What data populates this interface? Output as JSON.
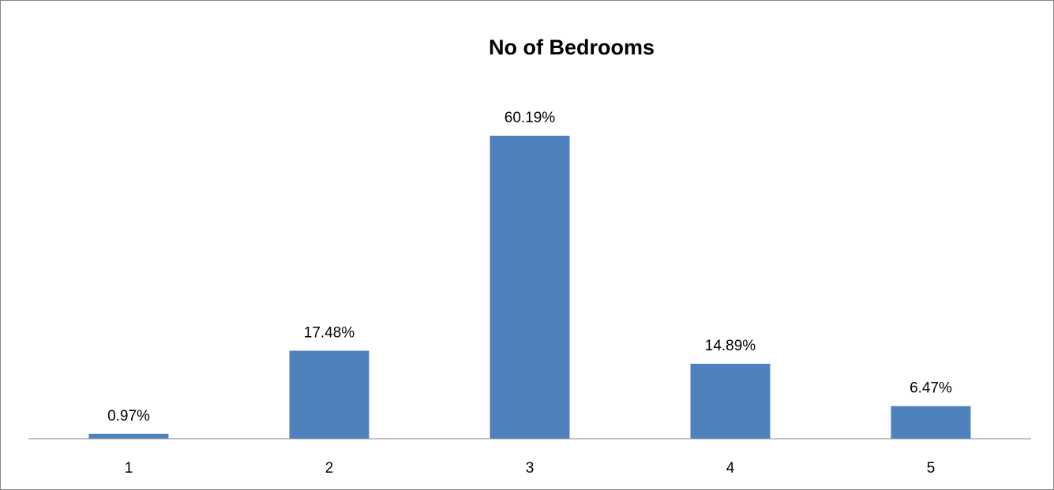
{
  "chart_data": {
    "type": "bar",
    "title": "No of Bedrooms",
    "xlabel": "",
    "ylabel": "",
    "categories": [
      "1",
      "2",
      "3",
      "4",
      "5"
    ],
    "values": [
      0.97,
      17.48,
      60.19,
      14.89,
      6.47
    ],
    "data_labels": [
      "0.97%",
      "17.48%",
      "60.19%",
      "14.89%",
      "6.47%"
    ],
    "ylim": [
      0,
      60.19
    ],
    "grid": false,
    "legend": "none",
    "bar_color": "#4F81BD",
    "axis_color": "#868686"
  }
}
